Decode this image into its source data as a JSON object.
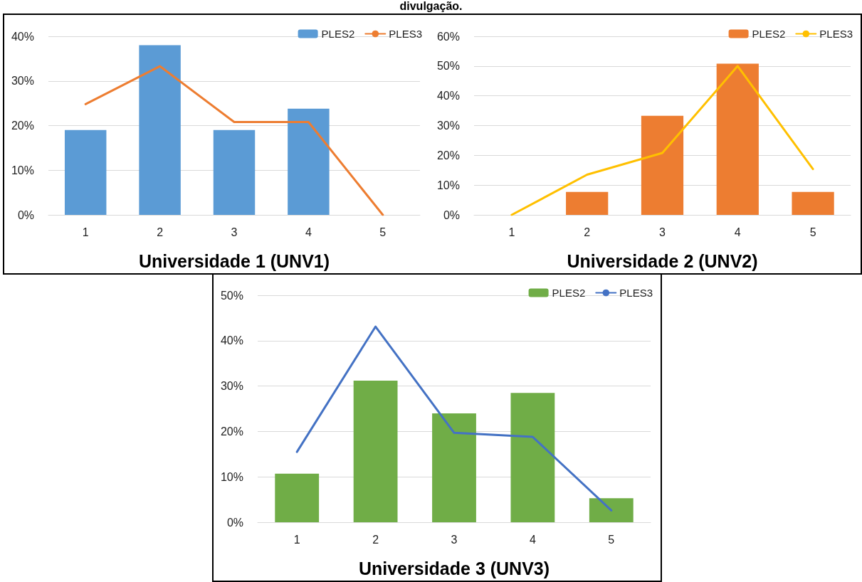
{
  "chart_data": [
    {
      "type": "bar",
      "xlabel": "Universidade 1 (UNV1)",
      "annotations": [
        "divulgação."
      ],
      "categories": [
        "1",
        "2",
        "3",
        "4",
        "5"
      ],
      "series": [
        {
          "name": "PLES2",
          "color": "#5b9bd5",
          "values": [
            19,
            38,
            19,
            23.8,
            0
          ]
        },
        {
          "name": "PLES3",
          "type": "line",
          "color": "#ed7d31",
          "values": [
            24.8,
            33.3,
            20.8,
            20.8,
            0
          ]
        }
      ],
      "ylim": [
        0,
        40
      ],
      "yticks": [
        {
          "value": 0,
          "label": "0%"
        },
        {
          "value": 10,
          "label": "10%"
        },
        {
          "value": 20,
          "label": "20%"
        },
        {
          "value": 30,
          "label": "30%"
        },
        {
          "value": 40,
          "label": "40%"
        }
      ],
      "grid": "y",
      "legend": "top right"
    },
    {
      "type": "bar",
      "xlabel": "Universidade 2 (UNV2)",
      "categories": [
        "1",
        "2",
        "3",
        "4",
        "5"
      ],
      "series": [
        {
          "name": "PLES2",
          "color": "#ed7d31",
          "values": [
            0,
            7.7,
            33.3,
            50.8,
            7.7
          ]
        },
        {
          "name": "PLES3",
          "type": "line",
          "color": "#ffc000",
          "values": [
            0,
            13.5,
            20.8,
            50,
            15.4
          ]
        }
      ],
      "ylim": [
        0,
        60
      ],
      "yticks": [
        {
          "value": 0,
          "label": "0%"
        },
        {
          "value": 10,
          "label": "10%"
        },
        {
          "value": 20,
          "label": "20%"
        },
        {
          "value": 30,
          "label": "30%"
        },
        {
          "value": 40,
          "label": "40%"
        },
        {
          "value": 50,
          "label": "50%"
        },
        {
          "value": 60,
          "label": "60%"
        }
      ],
      "grid": "y",
      "legend": "top right"
    },
    {
      "type": "bar",
      "xlabel": "Universidade 3 (UNV3)",
      "categories": [
        "1",
        "2",
        "3",
        "4",
        "5"
      ],
      "series": [
        {
          "name": "PLES2",
          "color": "#70ad47",
          "values": [
            10.7,
            31.2,
            24,
            28.5,
            5.3
          ]
        },
        {
          "name": "PLES3",
          "type": "line",
          "color": "#4472c4",
          "values": [
            15.5,
            43.1,
            19.7,
            18.8,
            2.6
          ]
        }
      ],
      "ylim": [
        0,
        50
      ],
      "yticks": [
        {
          "value": 0,
          "label": "0%"
        },
        {
          "value": 10,
          "label": "10%"
        },
        {
          "value": 20,
          "label": "20%"
        },
        {
          "value": 30,
          "label": "30%"
        },
        {
          "value": 40,
          "label": "40%"
        },
        {
          "value": 50,
          "label": "50%"
        }
      ],
      "grid": "y",
      "legend": "top right"
    }
  ]
}
